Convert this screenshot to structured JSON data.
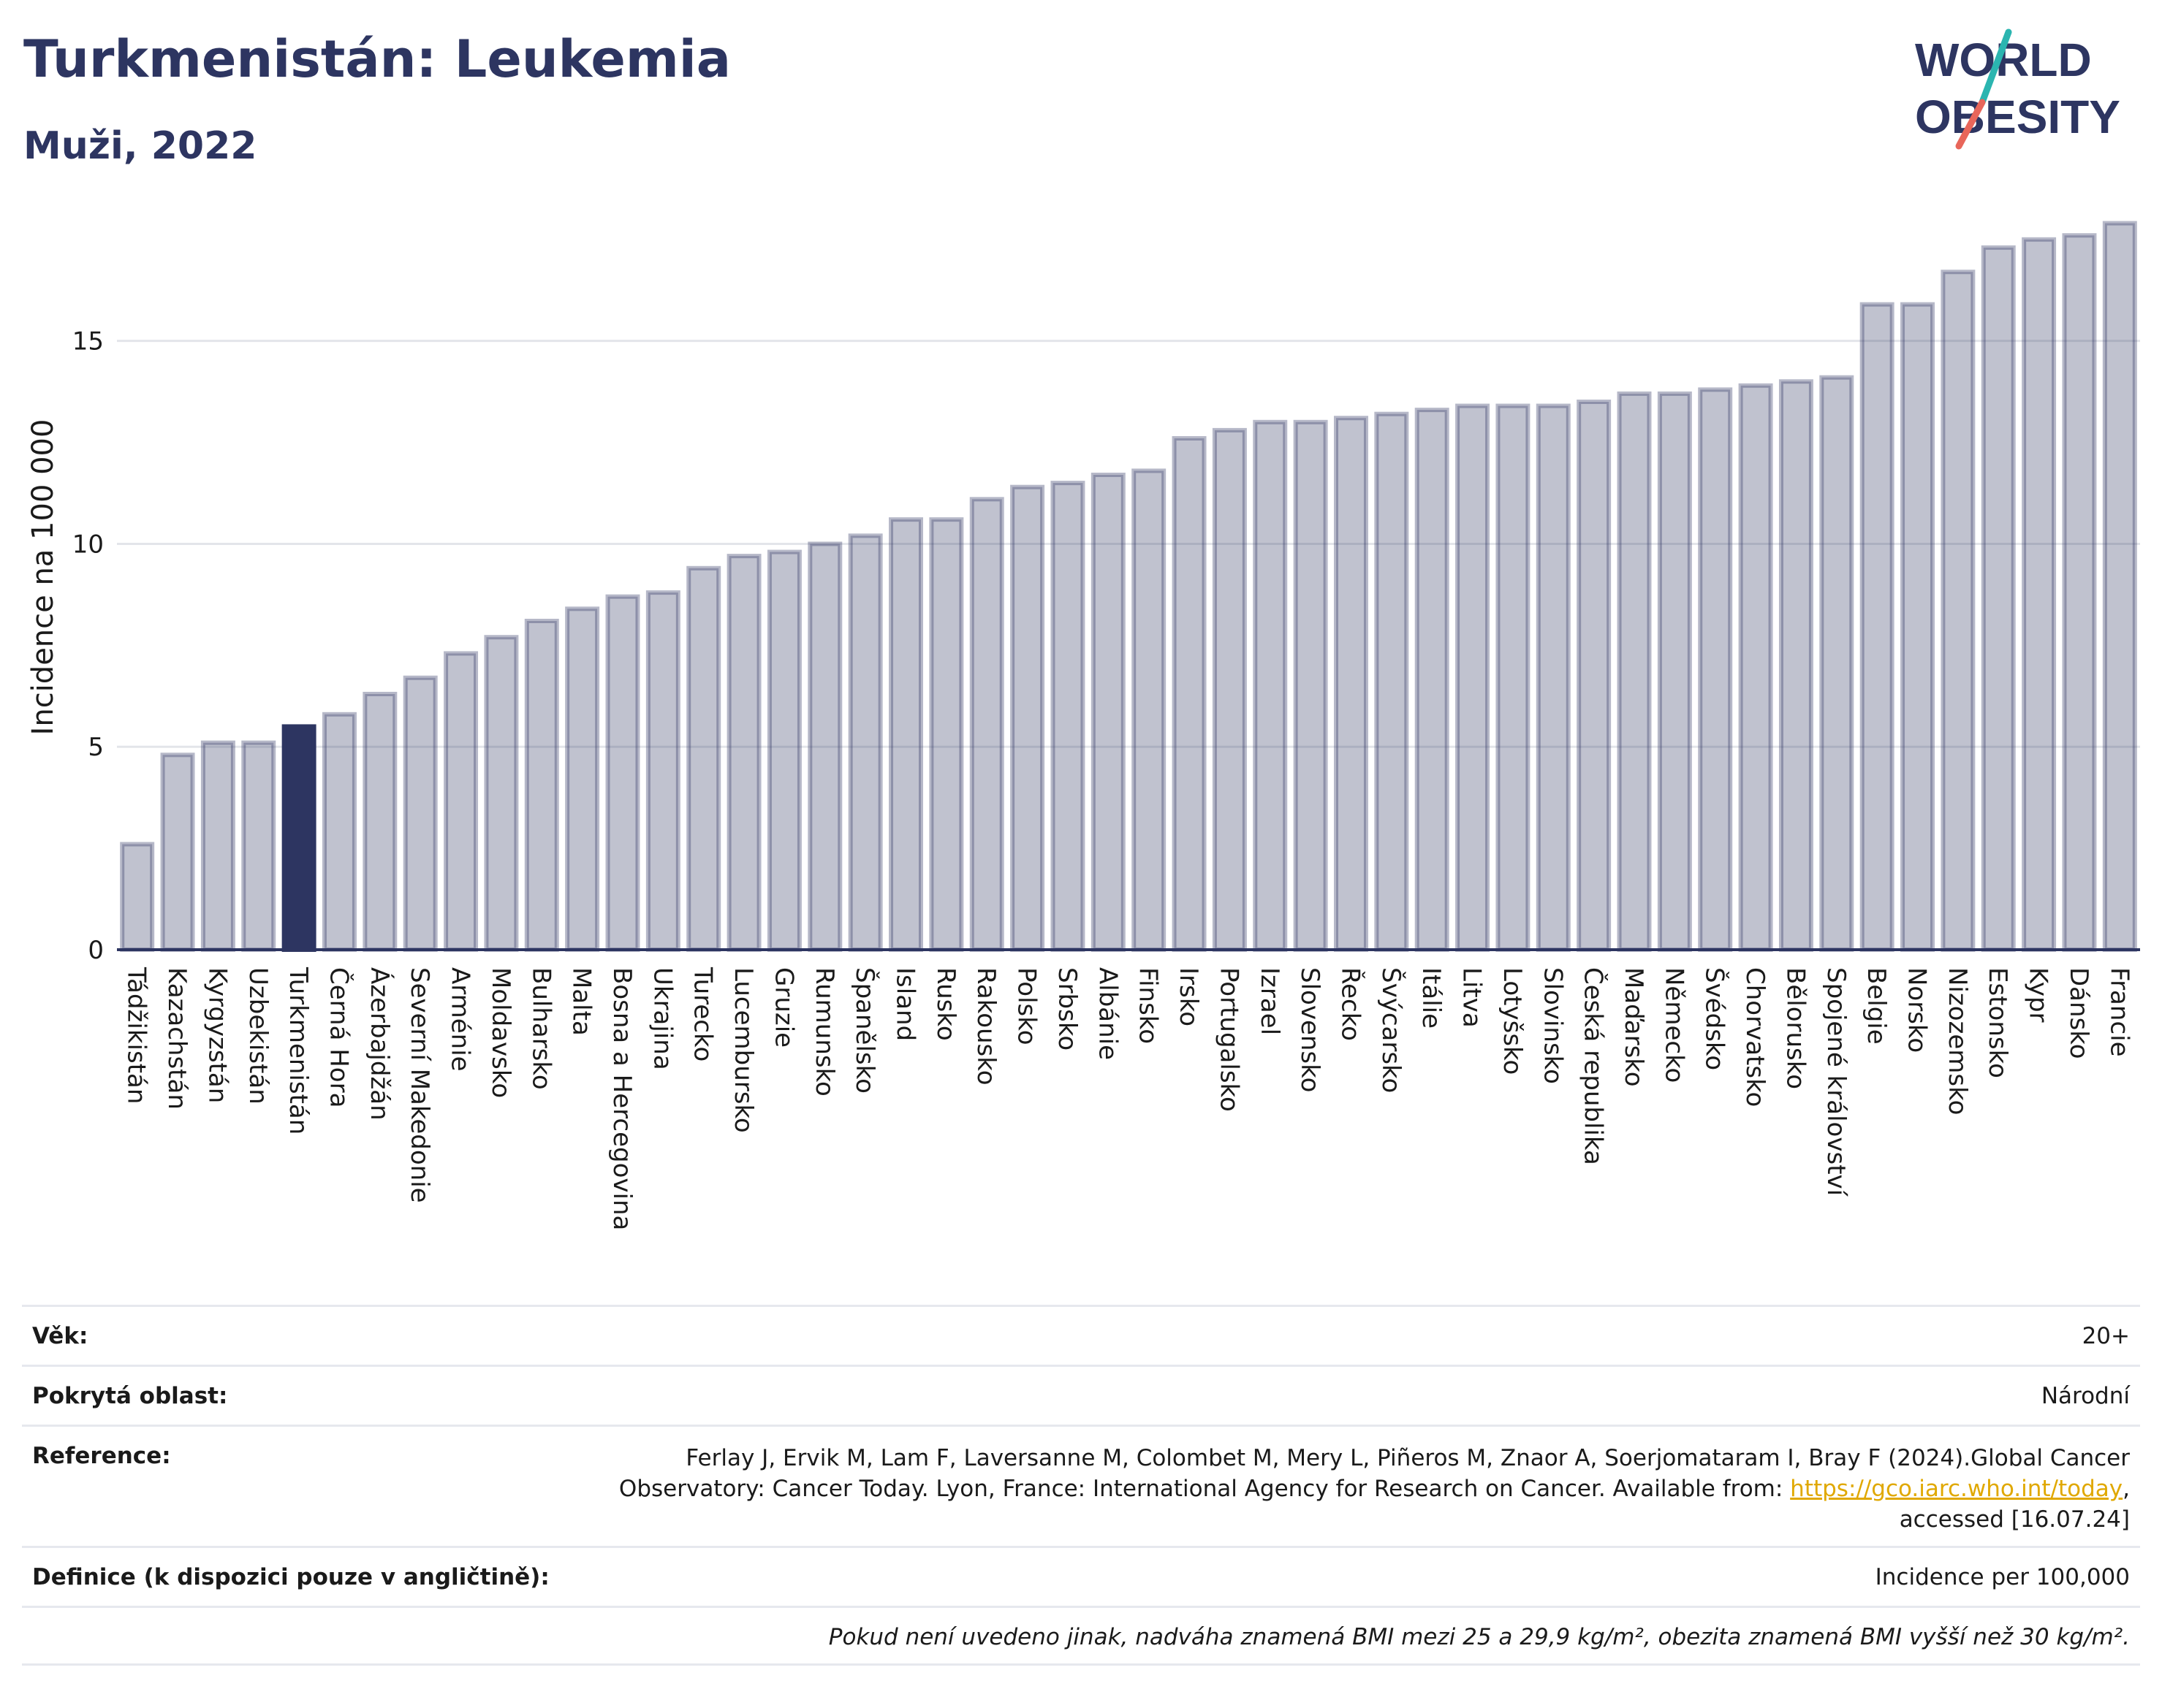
{
  "header": {
    "title": "Turkmenistán: Leukemia",
    "subtitle": "Muži, 2022"
  },
  "logo": {
    "line1": "WORLD",
    "line2": "OBESITY",
    "colors": {
      "text": "#2d3561",
      "slash_red": "#e8665a",
      "slash_teal": "#2bb5b0"
    }
  },
  "colors": {
    "bar": "#2d3561",
    "highlight": "#2d3561",
    "grid": "#e3e5ea"
  },
  "chart_data": {
    "type": "bar",
    "title": "Turkmenistán: Leukemia",
    "subtitle": "Muži, 2022",
    "ylabel": "Incidence na 100 000",
    "xlabel": "",
    "ylim": [
      0,
      18
    ],
    "yticks": [
      0,
      5,
      10,
      15
    ],
    "grid": true,
    "highlight": "Turkmenistán",
    "categories": [
      "Tádžikistán",
      "Kazachstán",
      "Kyrgyzstán",
      "Uzbekistán",
      "Turkmenistán",
      "Černá Hora",
      "Ázerbajdžán",
      "Severní Makedonie",
      "Arménie",
      "Moldavsko",
      "Bulharsko",
      "Malta",
      "Bosna a Hercegovina",
      "Ukrajina",
      "Turecko",
      "Lucembursko",
      "Gruzie",
      "Rumunsko",
      "Španělsko",
      "Island",
      "Rusko",
      "Rakousko",
      "Polsko",
      "Srbsko",
      "Albánie",
      "Finsko",
      "Irsko",
      "Portugalsko",
      "Izrael",
      "Slovensko",
      "Řecko",
      "Švýcarsko",
      "Itálie",
      "Litva",
      "Lotyšsko",
      "Slovinsko",
      "Česká republika",
      "Maďarsko",
      "Německo",
      "Švédsko",
      "Chorvatsko",
      "Bělorusko",
      "Spojené království",
      "Belgie",
      "Norsko",
      "Nizozemsko",
      "Estonsko",
      "Kypr",
      "Dánsko",
      "Francie"
    ],
    "values": [
      2.6,
      4.8,
      5.1,
      5.1,
      5.5,
      5.8,
      6.3,
      6.7,
      7.3,
      7.7,
      8.1,
      8.4,
      8.7,
      8.8,
      9.4,
      9.7,
      9.8,
      10.0,
      10.2,
      10.6,
      10.6,
      11.1,
      11.4,
      11.5,
      11.7,
      11.8,
      12.6,
      12.8,
      13.0,
      13.0,
      13.1,
      13.2,
      13.3,
      13.4,
      13.4,
      13.4,
      13.5,
      13.7,
      13.7,
      13.8,
      13.9,
      14.0,
      14.1,
      15.9,
      15.9,
      16.7,
      17.3,
      17.5,
      17.6,
      17.9
    ]
  },
  "info": {
    "age_label": "Věk:",
    "age_value": "20+",
    "area_label": "Pokrytá oblast:",
    "area_value": "Národní",
    "ref_label": "Reference:",
    "ref_text_1": "Ferlay J, Ervik M, Lam F, Laversanne M, Colombet M, Mery L, Piñeros M, Znaor A, Soerjomataram I, Bray F (2024).Global Cancer Observatory: Cancer Today. Lyon, France: International Agency for Research on Cancer. Available from: ",
    "ref_link": "https://gco.iarc.who.int/today",
    "ref_text_2": ", accessed [16.07.24]",
    "def_label": "Definice (k dispozici pouze v angličtině):",
    "def_value": "Incidence per 100,000",
    "note": "Pokud není uvedeno jinak, nadváha znamená BMI mezi 25 a 29,9 kg/m², obezita znamená BMI vyšší než 30 kg/m²."
  }
}
